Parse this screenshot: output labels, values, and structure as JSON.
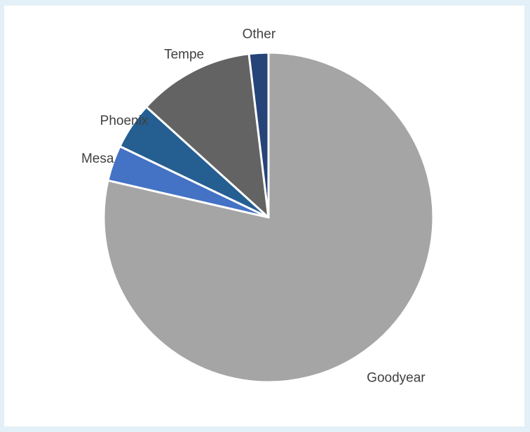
{
  "chart_data": {
    "type": "pie",
    "title": "",
    "categories": [
      "Goodyear",
      "Mesa",
      "Phoenix",
      "Tempe",
      "Other"
    ],
    "values": [
      78.6,
      3.5,
      4.6,
      11.4,
      1.9
    ],
    "colors": [
      "#a5a5a5",
      "#4472c4",
      "#255e91",
      "#636363",
      "#264478"
    ],
    "start_angle_deg": 0,
    "direction": "clockwise",
    "slice_border_color": "#ffffff",
    "legend": "none",
    "data_labels": "category-outside"
  }
}
